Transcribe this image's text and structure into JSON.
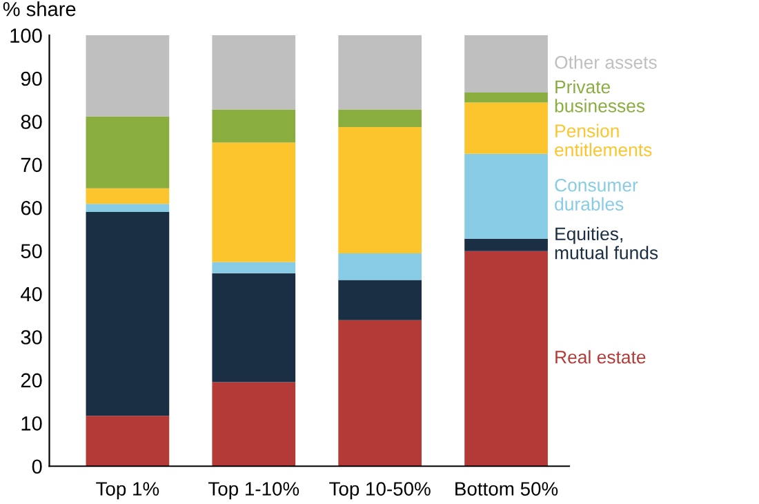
{
  "chart_data": {
    "type": "bar",
    "stacked": true,
    "ylabel": "% share",
    "categories": [
      "Top 1%",
      "Top 1-10%",
      "Top 10-50%",
      "Bottom 50%"
    ],
    "series": [
      {
        "name": "Real estate",
        "color": "#b33a36",
        "values": [
          11.7,
          19.5,
          33.9,
          49.9
        ]
      },
      {
        "name": "Equities,\nmutual funds",
        "color": "#1a2e44",
        "values": [
          47.3,
          25.3,
          9.3,
          2.9
        ]
      },
      {
        "name": "Consumer\ndurables",
        "color": "#87cce4",
        "values": [
          1.9,
          2.6,
          6.2,
          19.7
        ]
      },
      {
        "name": "Pension\nentitlements",
        "color": "#fcc42d",
        "values": [
          3.6,
          27.7,
          29.3,
          11.9
        ]
      },
      {
        "name": "Private\nbusinesses",
        "color": "#8aad40",
        "values": [
          16.7,
          7.7,
          4.1,
          2.3
        ]
      },
      {
        "name": "Other assets",
        "color": "#bfbfbf",
        "values": [
          18.8,
          17.2,
          17.2,
          13.3
        ]
      }
    ],
    "ylim": [
      0,
      100
    ],
    "yticks": [
      0,
      10,
      20,
      30,
      40,
      50,
      60,
      70,
      80,
      90,
      100
    ],
    "grid": false,
    "legend": false
  }
}
